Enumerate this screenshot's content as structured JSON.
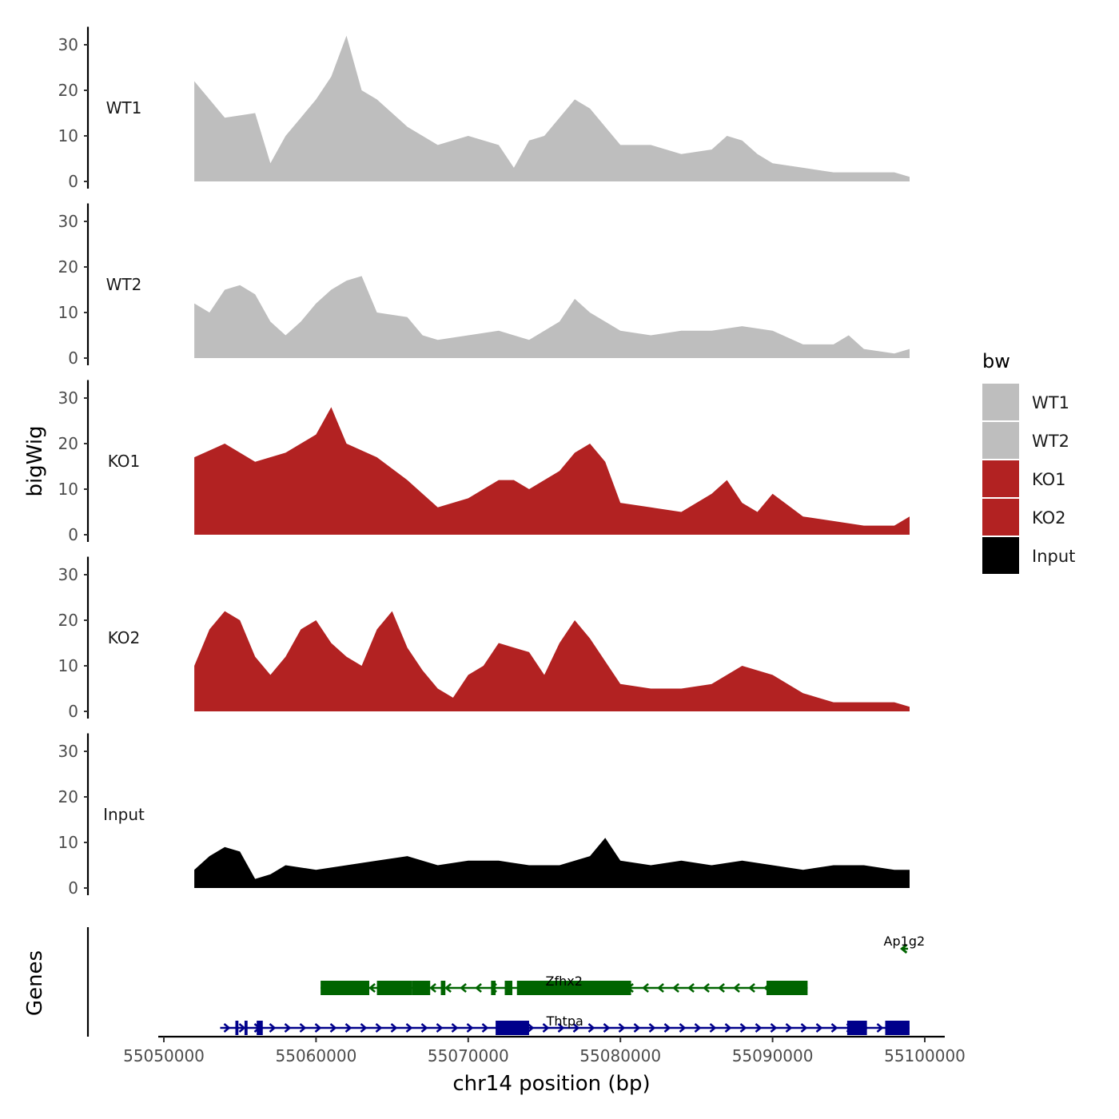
{
  "chart_data": {
    "type": "area",
    "title": "",
    "ylabel": "bigWig",
    "xlabel": "chr14 position (bp)",
    "genes_label": "Genes",
    "xlim": [
      55050000,
      55100000
    ],
    "x_ticks": [
      55050000,
      55060000,
      55070000,
      55080000,
      55090000,
      55100000
    ],
    "x_tick_labels": [
      "55050000",
      "55060000",
      "55070000",
      "55080000",
      "55090000",
      "55100000"
    ],
    "ylim": [
      0,
      35
    ],
    "y_ticks": [
      0,
      10,
      20,
      30
    ],
    "y_tick_labels": [
      "0",
      "10",
      "20",
      "30"
    ],
    "legend": {
      "title": "bw",
      "position": "right",
      "entries": [
        {
          "label": "WT1",
          "color": "#BEBEBE"
        },
        {
          "label": "WT2",
          "color": "#BEBEBE"
        },
        {
          "label": "KO1",
          "color": "#B22222"
        },
        {
          "label": "KO2",
          "color": "#B22222"
        },
        {
          "label": "Input",
          "color": "#000000"
        }
      ]
    },
    "series": [
      {
        "name": "WT1",
        "color": "#BEBEBE",
        "x": [
          55052000,
          55054000,
          55056000,
          55057000,
          55058000,
          55059000,
          55060000,
          55061000,
          55062000,
          55063000,
          55064000,
          55066000,
          55068000,
          55070000,
          55072000,
          55073000,
          55074000,
          55075000,
          55076000,
          55077000,
          55078000,
          55080000,
          55082000,
          55084000,
          55086000,
          55087000,
          55088000,
          55089000,
          55090000,
          55092000,
          55094000,
          55096000,
          55098000,
          55099000
        ],
        "values": [
          22,
          14,
          15,
          4,
          10,
          14,
          18,
          23,
          32,
          20,
          18,
          12,
          8,
          10,
          8,
          3,
          9,
          10,
          14,
          18,
          16,
          8,
          8,
          6,
          7,
          10,
          9,
          6,
          4,
          3,
          2,
          2,
          2,
          1
        ]
      },
      {
        "name": "WT2",
        "color": "#BEBEBE",
        "x": [
          55052000,
          55053000,
          55054000,
          55055000,
          55056000,
          55057000,
          55058000,
          55059000,
          55060000,
          55061000,
          55062000,
          55063000,
          55064000,
          55066000,
          55067000,
          55068000,
          55070000,
          55072000,
          55074000,
          55076000,
          55077000,
          55078000,
          55080000,
          55082000,
          55084000,
          55086000,
          55088000,
          55090000,
          55092000,
          55094000,
          55095000,
          55096000,
          55098000,
          55099000
        ],
        "values": [
          12,
          10,
          15,
          16,
          14,
          8,
          5,
          8,
          12,
          15,
          17,
          18,
          10,
          9,
          5,
          4,
          5,
          6,
          4,
          8,
          13,
          10,
          6,
          5,
          6,
          6,
          7,
          6,
          3,
          3,
          5,
          2,
          1,
          2
        ]
      },
      {
        "name": "KO1",
        "color": "#B22222",
        "x": [
          55052000,
          55054000,
          55056000,
          55058000,
          55060000,
          55061000,
          55062000,
          55064000,
          55066000,
          55067000,
          55068000,
          55070000,
          55071000,
          55072000,
          55073000,
          55074000,
          55075000,
          55076000,
          55077000,
          55078000,
          55079000,
          55080000,
          55082000,
          55084000,
          55086000,
          55087000,
          55088000,
          55089000,
          55090000,
          55092000,
          55094000,
          55096000,
          55098000,
          55099000
        ],
        "values": [
          17,
          20,
          16,
          18,
          22,
          28,
          20,
          17,
          12,
          9,
          6,
          8,
          10,
          12,
          12,
          10,
          12,
          14,
          18,
          20,
          16,
          7,
          6,
          5,
          9,
          12,
          7,
          5,
          9,
          4,
          3,
          2,
          2,
          4
        ]
      },
      {
        "name": "KO2",
        "color": "#B22222",
        "x": [
          55052000,
          55053000,
          55054000,
          55055000,
          55056000,
          55057000,
          55058000,
          55059000,
          55060000,
          55061000,
          55062000,
          55063000,
          55064000,
          55065000,
          55066000,
          55067000,
          55068000,
          55069000,
          55070000,
          55071000,
          55072000,
          55073000,
          55074000,
          55075000,
          55076000,
          55077000,
          55078000,
          55080000,
          55082000,
          55084000,
          55086000,
          55088000,
          55090000,
          55092000,
          55094000,
          55096000,
          55098000,
          55099000
        ],
        "values": [
          10,
          18,
          22,
          20,
          12,
          8,
          12,
          18,
          20,
          15,
          12,
          10,
          18,
          22,
          14,
          9,
          5,
          3,
          8,
          10,
          15,
          14,
          13,
          8,
          15,
          20,
          16,
          6,
          5,
          5,
          6,
          10,
          8,
          4,
          2,
          2,
          2,
          1
        ]
      },
      {
        "name": "Input",
        "color": "#000000",
        "x": [
          55052000,
          55053000,
          55054000,
          55055000,
          55056000,
          55057000,
          55058000,
          55060000,
          55062000,
          55064000,
          55066000,
          55068000,
          55070000,
          55072000,
          55074000,
          55076000,
          55078000,
          55079000,
          55080000,
          55082000,
          55084000,
          55086000,
          55088000,
          55090000,
          55092000,
          55094000,
          55096000,
          55098000,
          55099000
        ],
        "values": [
          4,
          7,
          9,
          8,
          2,
          3,
          5,
          4,
          5,
          6,
          7,
          5,
          6,
          6,
          5,
          5,
          7,
          11,
          6,
          5,
          6,
          5,
          6,
          5,
          4,
          5,
          5,
          4,
          4
        ]
      }
    ],
    "genes": [
      {
        "name": "Ap1g2",
        "strand": "-",
        "color": "#006400",
        "start": 55098600,
        "end": 55098900,
        "exons": []
      },
      {
        "name": "Zfhx2",
        "strand": "-",
        "color": "#006400",
        "start": 55060300,
        "end": 55092300,
        "exons": [
          [
            55060300,
            55063500
          ],
          [
            55064000,
            55066300
          ],
          [
            55066300,
            55067500
          ],
          [
            55068200,
            55068500
          ],
          [
            55071500,
            55071800
          ],
          [
            55072400,
            55072900
          ],
          [
            55073200,
            55080700
          ],
          [
            55089600,
            55092300
          ]
        ]
      },
      {
        "name": "Thtpa",
        "strand": "+",
        "color": "#00008B",
        "start": 55053700,
        "end": 55099000,
        "exons": [
          [
            55054700,
            55054900
          ],
          [
            55055300,
            55055500
          ],
          [
            55056100,
            55056500
          ],
          [
            55071800,
            55074000
          ],
          [
            55094900,
            55096200
          ],
          [
            55097400,
            55099000
          ]
        ]
      }
    ]
  }
}
